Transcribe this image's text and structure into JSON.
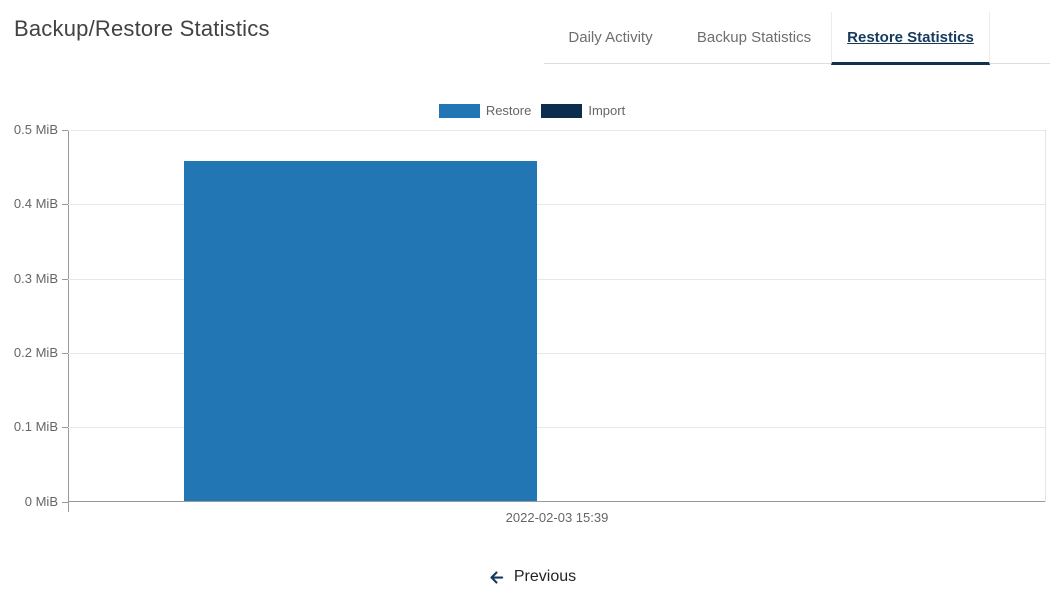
{
  "page": {
    "title": "Backup/Restore Statistics"
  },
  "tabs": [
    {
      "label": "Daily Activity",
      "active": false
    },
    {
      "label": "Backup Statistics",
      "active": false
    },
    {
      "label": "Restore Statistics",
      "active": true
    }
  ],
  "chart_data": {
    "type": "bar",
    "title": "",
    "categories": [
      "2022-02-03 15:39"
    ],
    "series": [
      {
        "name": "Restore",
        "color": "#2276b3",
        "values": [
          0.457
        ]
      },
      {
        "name": "Import",
        "color": "#0c2d4e",
        "values": [
          0
        ]
      }
    ],
    "xlabel": "",
    "ylabel": "",
    "ylim": [
      0,
      0.5
    ],
    "ytick_values": [
      0.5,
      0.4,
      0.3,
      0.2,
      0.1,
      0
    ],
    "ytick_labels": [
      "0.5 MiB",
      "0.4 MiB",
      "0.3 MiB",
      "0.2 MiB",
      "0.1 MiB",
      "0 MiB"
    ],
    "grid": true,
    "legend_position": "top-center"
  },
  "pagination": {
    "previous_label": "Previous"
  },
  "colors": {
    "active_tab_text": "#153a5c",
    "active_tab_border": "#12314e",
    "restore_bar": "#2276b3",
    "import_swatch": "#0c2d4e",
    "axis": "#999999",
    "gridline": "#e8e8e8"
  }
}
